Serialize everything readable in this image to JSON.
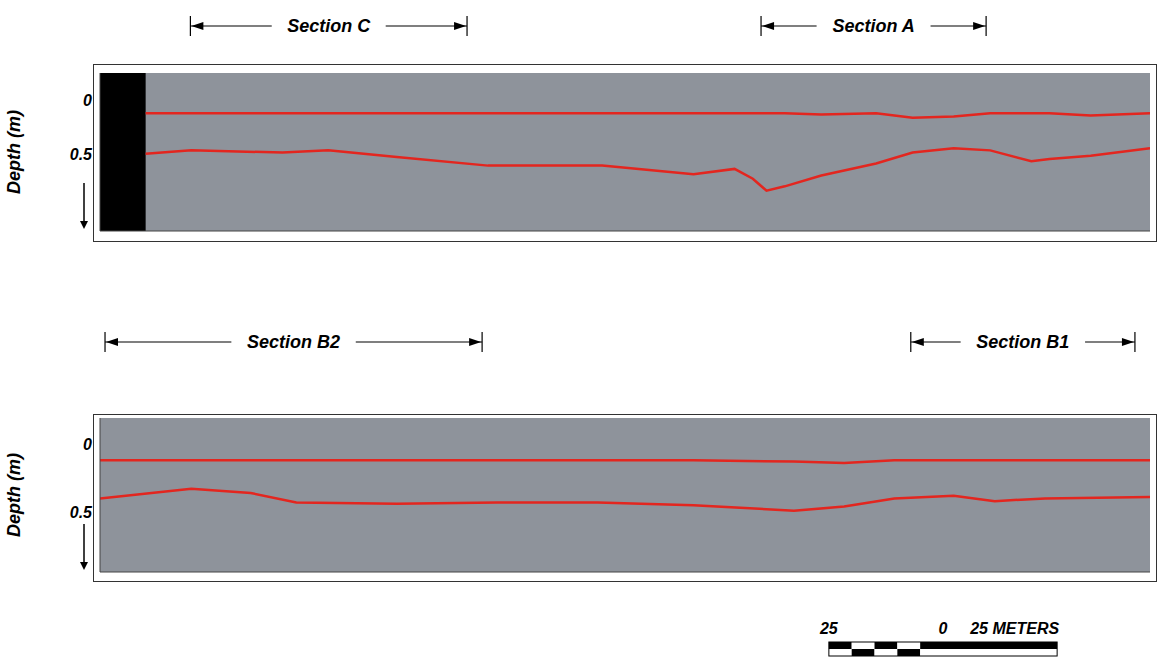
{
  "chart_data": [
    {
      "type": "line",
      "ylabel": "Depth (m)",
      "tick_labels": "y",
      "grid": false,
      "xlim": [
        0,
        230
      ],
      "ylim": [
        1.2,
        -0.25
      ],
      "yticks": [
        0,
        0.5
      ],
      "x": [
        10,
        20,
        40,
        50,
        65,
        85,
        110,
        130,
        139,
        143,
        146,
        150,
        158,
        170,
        178,
        187,
        195,
        204,
        208,
        217,
        230
      ],
      "series": [
        {
          "color": "#e3261f",
          "values": [
            0.12,
            0.12,
            0.12,
            0.12,
            0.12,
            0.12,
            0.12,
            0.12,
            0.12,
            0.12,
            0.12,
            0.12,
            0.13,
            0.12,
            0.16,
            0.15,
            0.12,
            0.12,
            0.12,
            0.14,
            0.12
          ]
        },
        {
          "color": "#e3261f",
          "values": [
            0.49,
            0.46,
            0.48,
            0.46,
            0.52,
            0.6,
            0.6,
            0.68,
            0.63,
            0.72,
            0.83,
            0.79,
            0.69,
            0.58,
            0.48,
            0.44,
            0.46,
            0.56,
            0.54,
            0.51,
            0.44
          ]
        }
      ],
      "sections": [
        {
          "label": "Section C",
          "start": 19.8,
          "end": 80.4
        },
        {
          "label": "Section A",
          "start": 144.8,
          "end": 194.1
        }
      ]
    },
    {
      "type": "line",
      "ylabel": "Depth (m)",
      "tick_labels": "y",
      "grid": false,
      "xlim": [
        0,
        230
      ],
      "ylim": [
        0.94,
        -0.19
      ],
      "yticks": [
        0,
        0.5
      ],
      "x": [
        0,
        20,
        33,
        43,
        65,
        87,
        109,
        130,
        152,
        163,
        174,
        187,
        196,
        207,
        230
      ],
      "series": [
        {
          "color": "#e3261f",
          "values": [
            0.12,
            0.12,
            0.12,
            0.12,
            0.12,
            0.12,
            0.12,
            0.12,
            0.13,
            0.14,
            0.12,
            0.12,
            0.12,
            0.12,
            0.12
          ]
        },
        {
          "color": "#e3261f",
          "values": [
            0.4,
            0.33,
            0.36,
            0.43,
            0.44,
            0.43,
            0.43,
            0.45,
            0.49,
            0.46,
            0.4,
            0.38,
            0.42,
            0.4,
            0.39
          ]
        }
      ],
      "sections": [
        {
          "label": "Section B2",
          "start": 1.1,
          "end": 83.7
        },
        {
          "label": "Section B1",
          "start": 177.6,
          "end": 226.7
        }
      ]
    }
  ],
  "scale_bar": {
    "ticks": [
      {
        "value": -25,
        "label": "25"
      },
      0,
      {
        "value": 25,
        "label": "25 METERS"
      }
    ]
  }
}
